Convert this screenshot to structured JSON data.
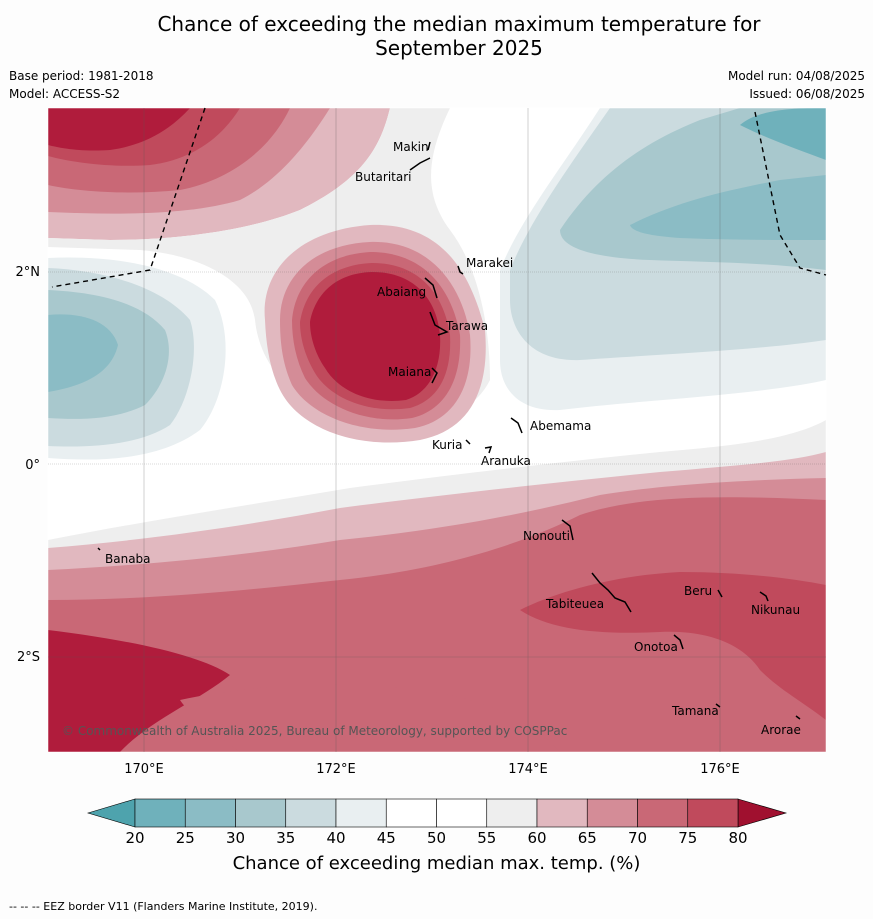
{
  "title_line1": "Chance of exceeding the median maximum temperature for",
  "title_line2": "September 2025",
  "base_period": "Base period: 1981-2018",
  "model": "Model: ACCESS-S2",
  "model_run": "Model run: 04/08/2025",
  "issued": "Issued: 06/08/2025",
  "copyright": "© Commonwealth of Australia 2025, Bureau of Meteorology, supported by COSPPac",
  "lat_labels": [
    "2°N",
    "0°",
    "2°S"
  ],
  "lon_labels": [
    "170°E",
    "172°E",
    "174°E",
    "176°E"
  ],
  "islands": [
    "Makin",
    "Butaritari",
    "Marakei",
    "Abaiang",
    "Tarawa",
    "Maiana",
    "Abemama",
    "Kuria",
    "Aranuka",
    "Nonouti",
    "Banaba",
    "Beru",
    "Tabiteuea",
    "Nikunau",
    "Onotoa",
    "Tamana",
    "Arorae"
  ],
  "colorbar": {
    "ticks": [
      "20",
      "25",
      "30",
      "35",
      "40",
      "45",
      "50",
      "55",
      "60",
      "65",
      "70",
      "75",
      "80"
    ],
    "colors": [
      "#6fb1bb",
      "#8bbcc5",
      "#a8c8cd",
      "#cbdbdf",
      "#e9eff1",
      "#ffffff",
      "#ffffff",
      "#eeeeee",
      "#e1b8bf",
      "#d48c97",
      "#c96876",
      "#c04a5c",
      "#b01c3c"
    ],
    "below_color": "#4ea3ad",
    "above_color": "#a0102f",
    "label": "Chance of exceeding median max. temp. (%)"
  },
  "footnote": "--  --  -- EEZ border V11 (Flanders Marine Institute, 2019)."
}
